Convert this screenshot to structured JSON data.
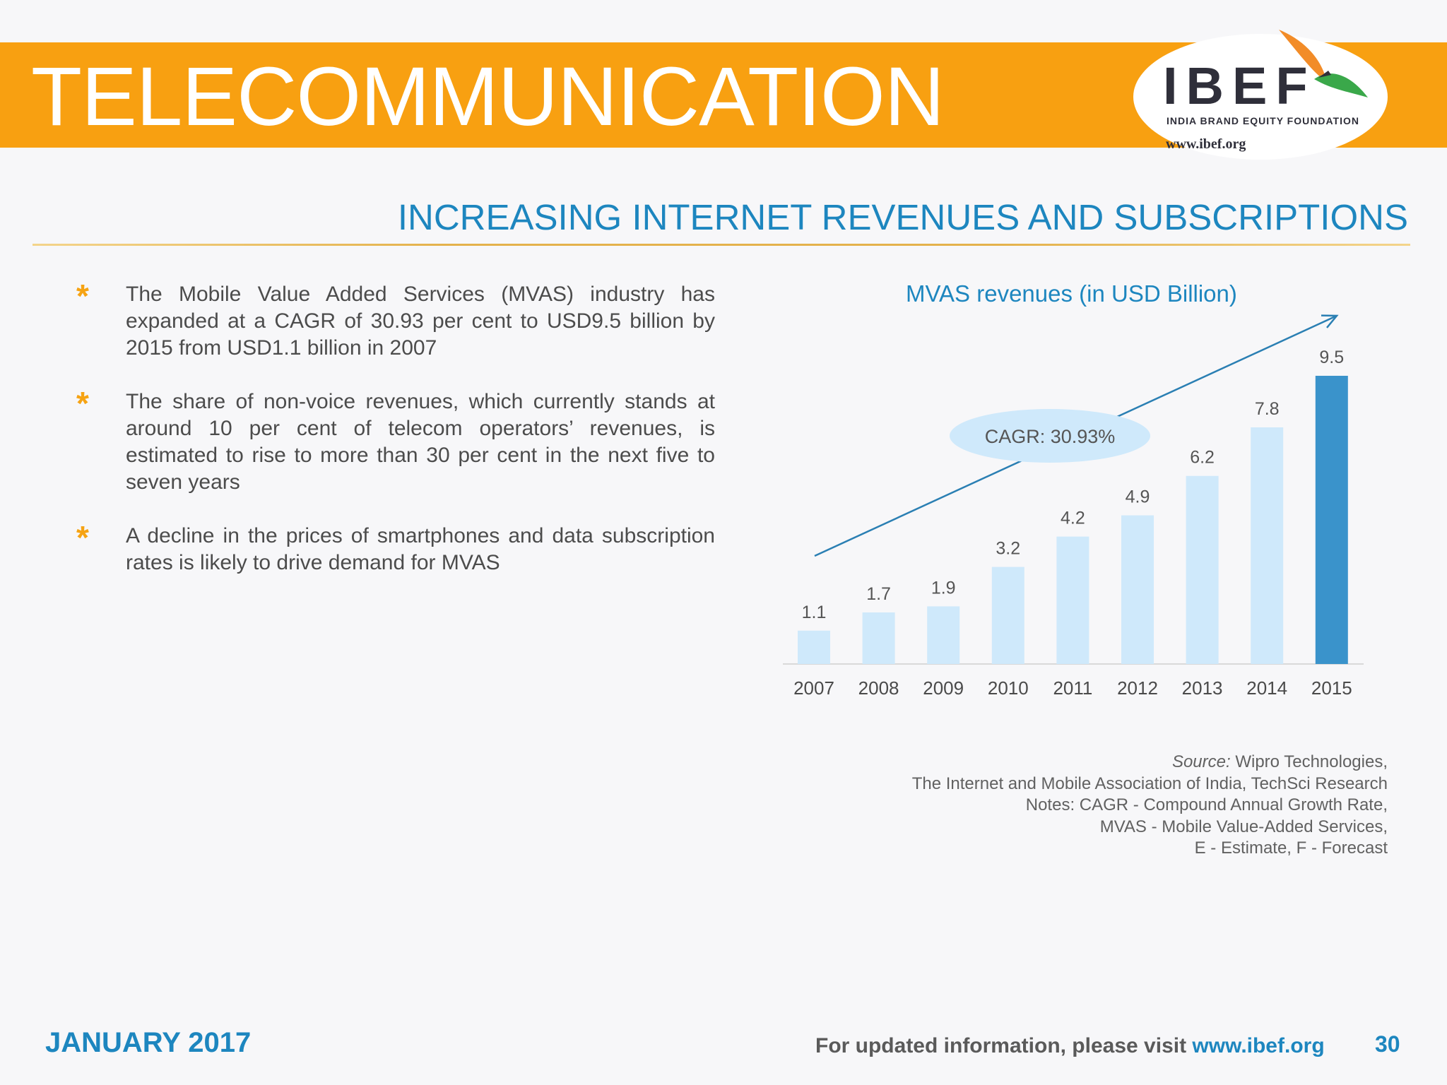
{
  "header": {
    "title": "TELECOMMUNICATION",
    "logo_text": "IBEF",
    "logo_subtext": "INDIA BRAND EQUITY FOUNDATION",
    "logo_url": "www.ibef.org"
  },
  "subtitle": "INCREASING INTERNET REVENUES AND SUBSCRIPTIONS",
  "bullets": [
    {
      "text": "The Mobile Value Added Services (MVAS) industry has expanded at a CAGR of 30.93 per cent to USD9.5 billion by 2015 from USD1.1 billion in 2007"
    },
    {
      "text": "The share of non-voice revenues, which currently stands at around 10 per cent of telecom operators’ revenues, is estimated to rise to more than 30 per cent in the next five to seven years"
    },
    {
      "text": "A decline in the prices of smartphones and data subscription rates is likely to drive demand for MVAS"
    }
  ],
  "chart_data": {
    "type": "bar",
    "title": "MVAS revenues (in USD Billion)",
    "categories": [
      "2007",
      "2008",
      "2009",
      "2010",
      "2011",
      "2012",
      "2013",
      "2014",
      "2015"
    ],
    "values": [
      1.1,
      1.7,
      1.9,
      3.2,
      4.2,
      4.9,
      6.2,
      7.8,
      9.5
    ],
    "ylim": [
      0,
      9.5
    ],
    "grid": false,
    "annotation": "CAGR: 30.93%",
    "colors": {
      "bar": "#cfe9fb",
      "highlight_bar": "#3a93cb",
      "arrow": "#2a7fb3",
      "label": "#555555"
    },
    "highlight_index": 8
  },
  "source": {
    "label": "Source:",
    "line1": "Wipro Technologies,",
    "line2": "The Internet and Mobile Association of India, TechSci Research",
    "line3": "Notes: CAGR - Compound Annual Growth Rate,",
    "line4": "MVAS - Mobile Value-Added Services,",
    "line5": "E - Estimate, F - Forecast"
  },
  "footer": {
    "date": "JANUARY 2017",
    "info_prefix": "For updated information, please visit",
    "info_link": "www.ibef.org",
    "page_number": "30"
  },
  "colors": {
    "banner": "#f8a011",
    "accent": "#1d86bf",
    "bullet_star": "#f6a313"
  }
}
